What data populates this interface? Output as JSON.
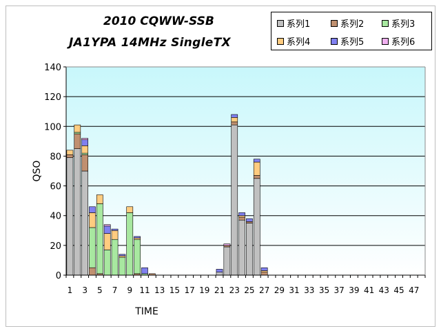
{
  "chart_data": {
    "type": "bar",
    "stacked": true,
    "title": "2010 CQWW-SSB",
    "subtitle": "JA1YPA  14MHz  SingleTX",
    "xlabel": "TIME",
    "ylabel": "QSO",
    "ylim": [
      0,
      140
    ],
    "yticks": [
      "0",
      "20",
      "40",
      "60",
      "80",
      "100",
      "120",
      "140"
    ],
    "categories": [
      "1",
      "2",
      "3",
      "4",
      "5",
      "6",
      "7",
      "8",
      "9",
      "10",
      "11",
      "12",
      "13",
      "14",
      "15",
      "16",
      "17",
      "18",
      "19",
      "20",
      "21",
      "22",
      "23",
      "24",
      "25",
      "26",
      "27",
      "28",
      "29",
      "30",
      "31",
      "32",
      "33",
      "34",
      "35",
      "36",
      "37",
      "38",
      "39",
      "40",
      "41",
      "42",
      "43",
      "44",
      "45",
      "46",
      "47",
      "48"
    ],
    "xtick_labels": [
      "1",
      "3",
      "5",
      "7",
      "9",
      "11",
      "13",
      "15",
      "17",
      "19",
      "21",
      "23",
      "25",
      "27",
      "29",
      "31",
      "33",
      "35",
      "37",
      "39",
      "41",
      "43",
      "45",
      "47"
    ],
    "legend_position": "top-right",
    "grid": true,
    "colors": {
      "plot_bg_top": "#c8f7fb",
      "plot_bg_bottom": "#ffffff",
      "s1": "#c0c0c0",
      "s2": "#c09070",
      "s3": "#a8e8a0",
      "s4": "#ffcc80",
      "s5": "#8080f0",
      "s6": "#f0b0f0"
    },
    "series": [
      {
        "name": "系列1",
        "values": [
          79,
          85,
          70,
          0,
          0,
          0,
          0,
          0,
          0,
          0,
          0,
          0,
          0,
          0,
          0,
          0,
          0,
          0,
          0,
          0,
          2,
          19,
          101,
          37,
          35,
          65,
          0,
          0,
          0,
          0,
          0,
          0,
          0,
          0,
          0,
          0,
          0,
          0,
          0,
          0,
          0,
          0,
          0,
          0,
          0,
          0,
          0,
          0
        ]
      },
      {
        "name": "系列2",
        "values": [
          2,
          10,
          11,
          5,
          1,
          0,
          0,
          0,
          0,
          1,
          0,
          1,
          0,
          0,
          0,
          0,
          0,
          0,
          0,
          0,
          0,
          1,
          2,
          2,
          1,
          2,
          2,
          0,
          0,
          0,
          0,
          0,
          0,
          0,
          0,
          0,
          0,
          0,
          0,
          0,
          0,
          0,
          0,
          0,
          0,
          0,
          0,
          0
        ]
      },
      {
        "name": "系列3",
        "values": [
          0,
          1,
          1,
          27,
          47,
          17,
          24,
          12,
          42,
          23,
          1,
          0,
          0,
          0,
          0,
          0,
          0,
          0,
          0,
          0,
          0,
          0,
          0,
          0,
          0,
          0,
          0,
          0,
          0,
          0,
          0,
          0,
          0,
          0,
          0,
          0,
          0,
          0,
          0,
          0,
          0,
          0,
          0,
          0,
          0,
          0,
          0,
          0
        ]
      },
      {
        "name": "系列4",
        "values": [
          3,
          5,
          5,
          10,
          6,
          11,
          6,
          1,
          4,
          1,
          0,
          0,
          0,
          0,
          0,
          0,
          0,
          0,
          0,
          0,
          0,
          0,
          3,
          1,
          0,
          9,
          1,
          0,
          0,
          0,
          0,
          0,
          0,
          0,
          0,
          0,
          0,
          0,
          0,
          0,
          0,
          0,
          0,
          0,
          0,
          0,
          0,
          0
        ]
      },
      {
        "name": "系列5",
        "values": [
          0,
          0,
          4,
          4,
          0,
          5,
          1,
          1,
          0,
          1,
          4,
          0,
          0,
          0,
          0,
          0,
          0,
          0,
          0,
          0,
          2,
          0,
          2,
          2,
          2,
          2,
          2,
          0,
          0,
          0,
          0,
          0,
          0,
          0,
          0,
          0,
          0,
          0,
          0,
          0,
          0,
          0,
          0,
          0,
          0,
          0,
          0,
          0
        ]
      },
      {
        "name": "系列6",
        "values": [
          0,
          0,
          1,
          0,
          0,
          1,
          0,
          0,
          0,
          0,
          0,
          0,
          0,
          0,
          0,
          0,
          0,
          0,
          0,
          0,
          0,
          1,
          0,
          0,
          0,
          0,
          0,
          0,
          0,
          0,
          0,
          0,
          0,
          0,
          0,
          0,
          0,
          0,
          0,
          0,
          0,
          0,
          0,
          0,
          0,
          0,
          0,
          0
        ]
      }
    ]
  }
}
